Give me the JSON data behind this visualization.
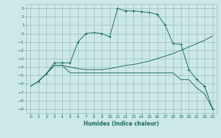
{
  "xlabel": "Humidex (Indice chaleur)",
  "ylabel": "",
  "background_color": "#cce8e8",
  "grid_color": "#99bbbb",
  "line_color": "#1a6b5a",
  "xlim": [
    -0.5,
    23.5
  ],
  "ylim": [
    -9.5,
    3.5
  ],
  "xticks": [
    0,
    1,
    2,
    3,
    4,
    5,
    6,
    7,
    8,
    9,
    10,
    11,
    12,
    13,
    14,
    15,
    16,
    17,
    18,
    19,
    20,
    21,
    22,
    23
  ],
  "yticks": [
    3,
    2,
    1,
    0,
    -1,
    -2,
    -3,
    -4,
    -5,
    -6,
    -7,
    -8,
    -9
  ],
  "series": [
    {
      "x": [
        0,
        1,
        2,
        3,
        4,
        5,
        6,
        7,
        8,
        9,
        10,
        11,
        12,
        13,
        14,
        15,
        16,
        17,
        18,
        19,
        20,
        21,
        22,
        23
      ],
      "y": [
        -6.3,
        -5.7,
        -4.8,
        -3.8,
        -3.8,
        -4.7,
        -4.7,
        -4.7,
        -4.7,
        -4.7,
        -4.7,
        -4.7,
        -4.7,
        -4.7,
        -4.7,
        -4.7,
        -4.7,
        -4.7,
        -4.7,
        -5.5,
        -5.5,
        -6.5,
        -7.2,
        -9.0
      ],
      "has_markers": false
    },
    {
      "x": [
        0,
        1,
        2,
        3,
        4,
        5,
        6,
        7,
        8,
        9,
        10,
        11,
        12,
        13,
        14,
        15,
        16,
        17,
        18,
        19,
        20,
        21,
        22,
        23
      ],
      "y": [
        -6.3,
        -5.7,
        -4.8,
        -3.8,
        -3.8,
        -4.0,
        -4.2,
        -4.3,
        -4.3,
        -4.3,
        -4.2,
        -4.0,
        -3.8,
        -3.7,
        -3.5,
        -3.3,
        -3.0,
        -2.7,
        -2.4,
        -2.0,
        -1.6,
        -1.2,
        -0.8,
        -0.3
      ],
      "has_markers": false
    },
    {
      "x": [
        1,
        2,
        3,
        4,
        5,
        6,
        7,
        8,
        9,
        10,
        11,
        12,
        13,
        14,
        15,
        16,
        17,
        18,
        19,
        20,
        21,
        22,
        23
      ],
      "y": [
        -5.7,
        -4.8,
        -3.5,
        -3.5,
        -3.5,
        -1.0,
        0.0,
        0.1,
        0.0,
        -0.4,
        3.0,
        2.7,
        2.7,
        2.6,
        2.5,
        2.3,
        1.0,
        -1.2,
        -1.3,
        -4.3,
        -5.5,
        -6.3,
        -9.0
      ],
      "has_markers": true
    }
  ]
}
